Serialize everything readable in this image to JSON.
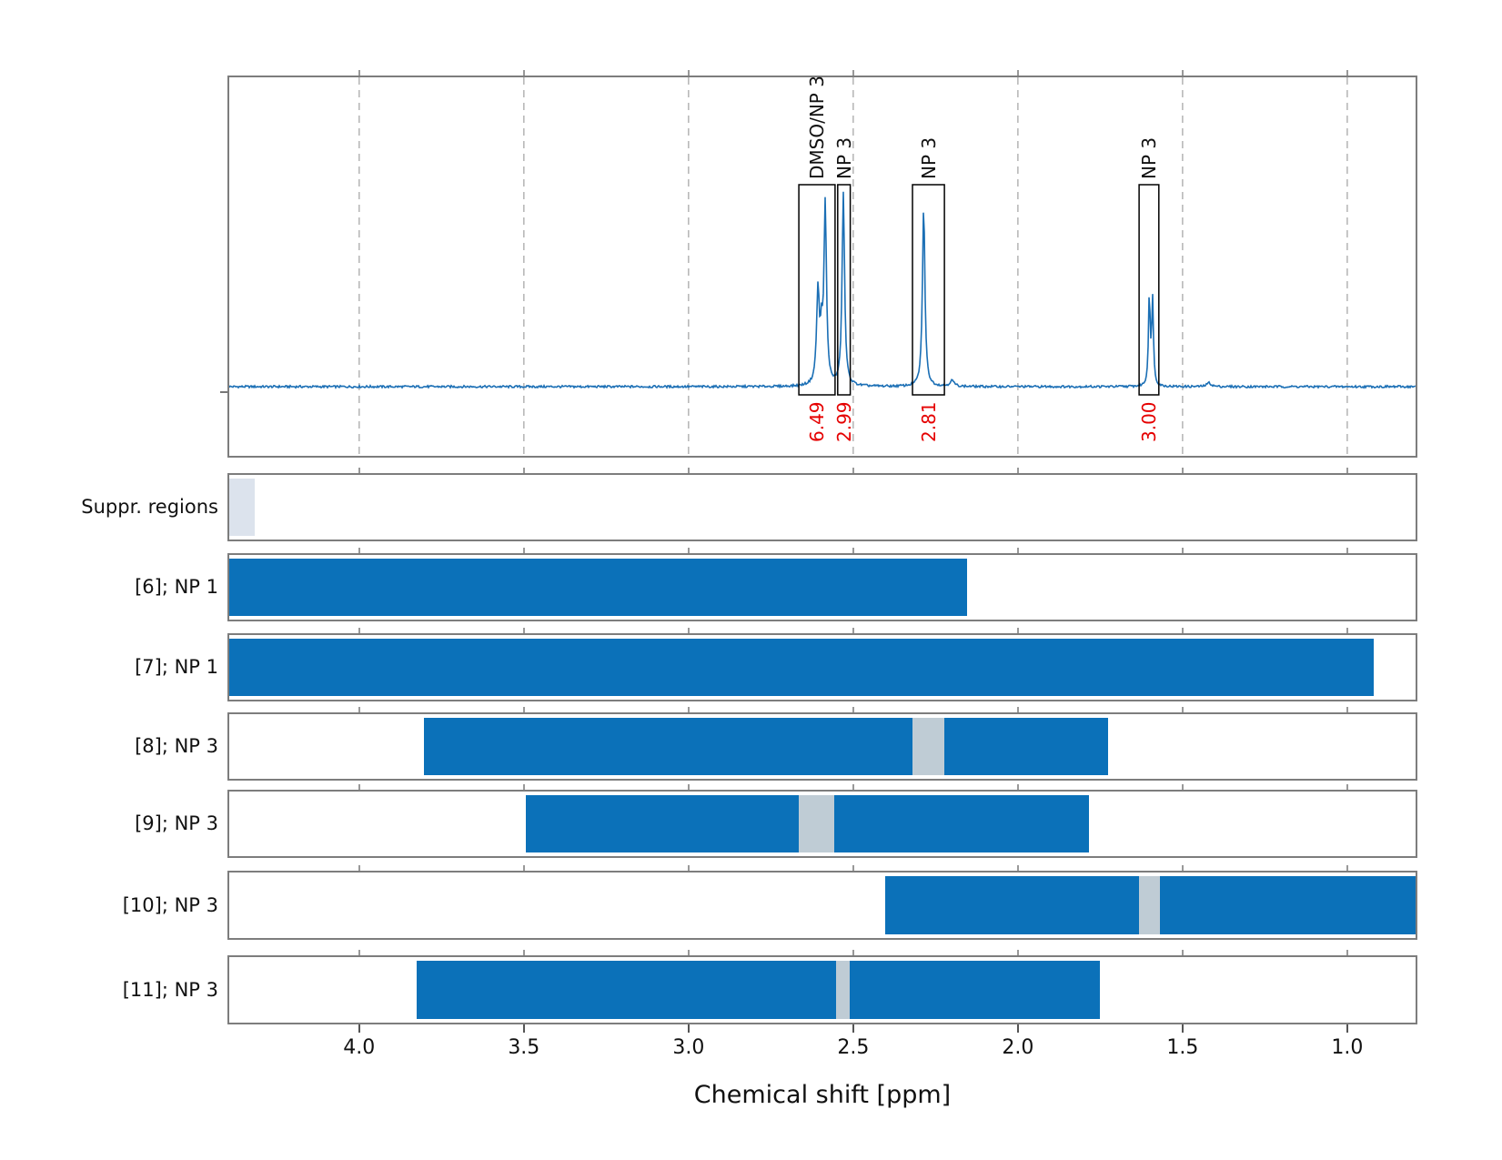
{
  "chart_data": {
    "type": "line+spans",
    "title": "",
    "xlabel": "Chemical shift [ppm]",
    "x_axis": {
      "range_ppm": [
        4.4,
        0.787
      ],
      "reversed": true,
      "ticks": [
        {
          "ppm": 4.0,
          "label": "4.0"
        },
        {
          "ppm": 3.5,
          "label": "3.5"
        },
        {
          "ppm": 3.0,
          "label": "3.0"
        },
        {
          "ppm": 2.5,
          "label": "2.5"
        },
        {
          "ppm": 2.0,
          "label": "2.0"
        },
        {
          "ppm": 1.5,
          "label": "1.5"
        },
        {
          "ppm": 1.0,
          "label": "1.0"
        }
      ],
      "grid": "dashed vertical gridlines at ticks in spectrum panel only"
    },
    "spectrum_peaks": [
      {
        "ppm": 2.607,
        "rel_height": 0.48,
        "width_ppm": 0.005
      },
      {
        "ppm": 2.596,
        "rel_height": 0.22,
        "width_ppm": 0.004
      },
      {
        "ppm": 2.585,
        "rel_height": 0.925,
        "width_ppm": 0.0045
      },
      {
        "ppm": 2.53,
        "rel_height": 1.0,
        "width_ppm": 0.0045
      },
      {
        "ppm": 2.286,
        "rel_height": 0.935,
        "width_ppm": 0.0045
      },
      {
        "ppm": 2.2,
        "rel_height": 0.03,
        "width_ppm": 0.008
      },
      {
        "ppm": 1.601,
        "rel_height": 0.47,
        "width_ppm": 0.003
      },
      {
        "ppm": 1.591,
        "rel_height": 0.45,
        "width_ppm": 0.003
      },
      {
        "ppm": 1.42,
        "rel_height": 0.02,
        "width_ppm": 0.008
      }
    ],
    "integration_boxes": [
      {
        "label": "DMSO/NP 3",
        "integral": "6.49",
        "ppm_from": 2.665,
        "ppm_to": 2.555
      },
      {
        "label": "NP 3",
        "integral": "2.99",
        "ppm_from": 2.547,
        "ppm_to": 2.509
      },
      {
        "label": "NP 3",
        "integral": "2.81",
        "ppm_from": 2.32,
        "ppm_to": 2.223
      },
      {
        "label": "NP 3",
        "integral": "3.00",
        "ppm_from": 1.632,
        "ppm_to": 1.572
      }
    ],
    "region_rows": [
      {
        "id": "suppr",
        "label": "Suppr. regions",
        "type": "suppressed",
        "bands": [
          [
            4.394,
            4.317
          ]
        ]
      },
      {
        "id": "6",
        "label": "[6]; NP 1",
        "type": "match",
        "bar": [
          4.4,
          2.154
        ]
      },
      {
        "id": "7",
        "label": "[7]; NP 1",
        "type": "match",
        "bar": [
          4.4,
          0.921
        ]
      },
      {
        "id": "8",
        "label": "[8]; NP 3",
        "type": "match",
        "bar": [
          3.804,
          1.726
        ],
        "gap": [
          2.32,
          2.223
        ]
      },
      {
        "id": "9",
        "label": "[9]; NP 3",
        "type": "match",
        "bar": [
          3.494,
          1.783
        ],
        "gap": [
          2.665,
          2.557
        ]
      },
      {
        "id": "10",
        "label": "[10]; NP 3",
        "type": "match",
        "bar": [
          2.402,
          0.787
        ],
        "gap": [
          1.632,
          1.568
        ]
      },
      {
        "id": "11",
        "label": "[11]; NP 3",
        "type": "match",
        "bar": [
          3.826,
          1.751
        ],
        "gap": [
          2.552,
          2.51
        ]
      }
    ]
  },
  "colors": {
    "spectrum_line": "#1b6fb5",
    "bar_blue": "#0b71b9",
    "gap_band": "#bfccd5",
    "suppressed_band": "#dce3ed",
    "integral_red": "#e50000",
    "frame_gray": "#7d7d7d",
    "grid_gray": "#b4b4b4",
    "box_black": "#000000"
  }
}
